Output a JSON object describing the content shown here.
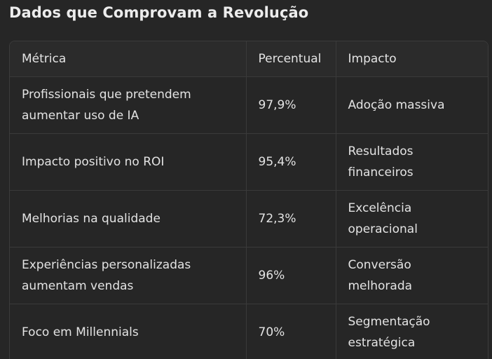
{
  "page": {
    "title": "Dados que Comprovam a Revolução"
  },
  "table": {
    "headers": [
      "Métrica",
      "Percentual",
      "Impacto"
    ],
    "rows": [
      {
        "metric": "Profissionais que pretendem aumentar uso de IA",
        "percent": "97,9%",
        "impact": "Adoção massiva"
      },
      {
        "metric": "Impacto positivo no ROI",
        "percent": "95,4%",
        "impact": "Resultados financeiros"
      },
      {
        "metric": "Melhorias na qualidade",
        "percent": "72,3%",
        "impact": "Excelência operacional"
      },
      {
        "metric": "Experiências personalizadas aumentam vendas",
        "percent": "96%",
        "impact": "Conversão melhorada"
      },
      {
        "metric": "Foco em Millennials",
        "percent": "70%",
        "impact": "Segmentação estratégica"
      }
    ]
  },
  "colors": {
    "background": "#262626",
    "text": "#e3e3e3",
    "border": "#3a3a3a"
  }
}
